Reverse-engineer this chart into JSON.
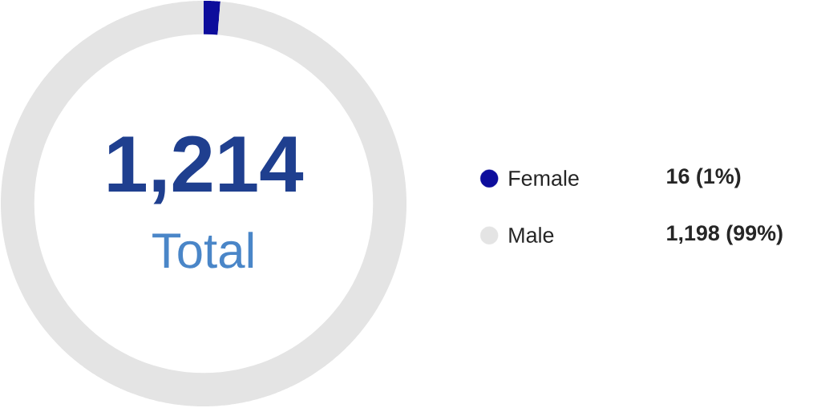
{
  "chart_data": {
    "type": "donut",
    "categories": [
      "Female",
      "Male"
    ],
    "values": [
      16,
      1198
    ],
    "colors": [
      "#0d0d9c",
      "#e4e4e4"
    ],
    "value_labels": [
      "16 (1%)",
      "1,198 (99%)"
    ],
    "annotations": [
      "1,214",
      "Total"
    ],
    "legend": "right"
  }
}
